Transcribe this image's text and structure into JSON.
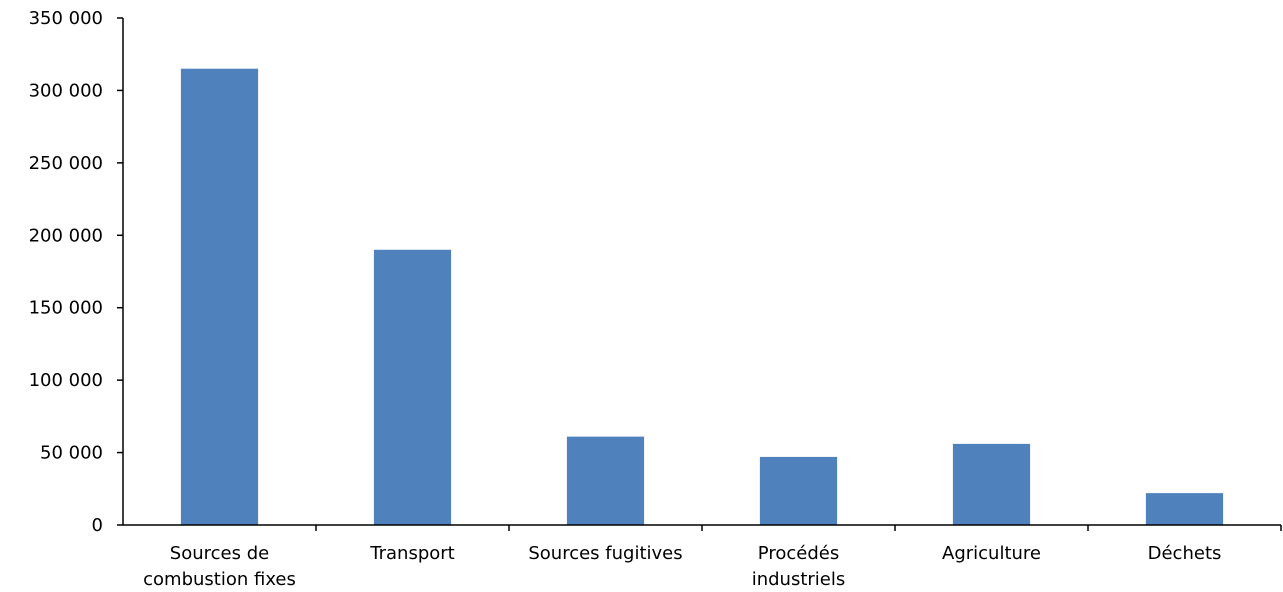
{
  "chart_data": {
    "type": "bar",
    "categories": [
      [
        "Sources de",
        "combustion fixes"
      ],
      [
        "Transport"
      ],
      [
        "Sources fugitives"
      ],
      [
        "Procédés",
        "industriels"
      ],
      [
        "Agriculture"
      ],
      [
        "Déchets"
      ]
    ],
    "values": [
      315000,
      190000,
      61000,
      47000,
      56000,
      22000
    ],
    "ylim": [
      0,
      350000
    ],
    "yticks": [
      0,
      50000,
      100000,
      150000,
      200000,
      250000,
      300000,
      350000
    ],
    "ytick_labels": [
      "0",
      "50 000",
      "100 000",
      "150 000",
      "200 000",
      "250 000",
      "300 000",
      "350 000"
    ],
    "title": "",
    "xlabel": "",
    "ylabel": "",
    "grid": false,
    "bar_color": "#4F81BD"
  }
}
